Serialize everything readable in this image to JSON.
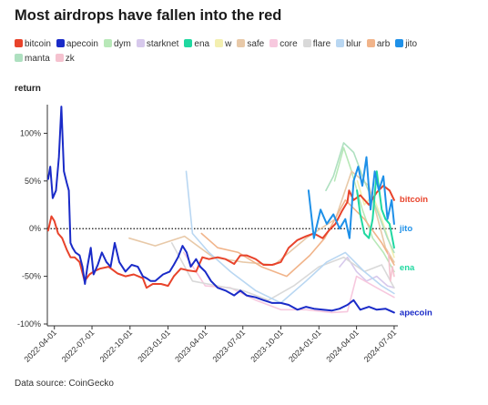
{
  "title": "Most airdrops have fallen into the red",
  "source": "Data source: CoinGecko",
  "chart_data": {
    "type": "line",
    "ylabel": "return",
    "xlabel": "",
    "y_unit": "%",
    "ylim": [
      -100,
      130
    ],
    "yticks": [
      100,
      50,
      0,
      -50,
      -100
    ],
    "ytick_labels": [
      "100%",
      "50%",
      "0%",
      "-50%",
      "-100%"
    ],
    "xlim": [
      "2022-03-15",
      "2024-07-10"
    ],
    "xticks": [
      "2022-04-01",
      "2022-07-01",
      "2022-10-01",
      "2023-01-01",
      "2023-04-01",
      "2023-07-01",
      "2023-10-01",
      "2024-01-01",
      "2024-04-01",
      "2024-07-01"
    ],
    "zero_line": "dotted",
    "grid": false,
    "legend_position": "top",
    "series": [
      {
        "name": "bitcoin",
        "color": "#e8432b",
        "end_label": "bitcoin",
        "x": [
          "2022-03-17",
          "2022-03-25",
          "2022-04-01",
          "2022-04-10",
          "2022-04-20",
          "2022-05-01",
          "2022-05-10",
          "2022-05-20",
          "2022-06-01",
          "2022-06-13",
          "2022-06-25",
          "2022-07-05",
          "2022-07-20",
          "2022-08-10",
          "2022-09-01",
          "2022-09-20",
          "2022-10-10",
          "2022-11-01",
          "2022-11-10",
          "2022-11-25",
          "2022-12-15",
          "2023-01-01",
          "2023-01-15",
          "2023-02-01",
          "2023-02-20",
          "2023-03-10",
          "2023-03-25",
          "2023-04-10",
          "2023-05-01",
          "2023-05-20",
          "2023-06-10",
          "2023-06-25",
          "2023-07-10",
          "2023-08-01",
          "2023-08-20",
          "2023-09-10",
          "2023-10-01",
          "2023-10-20",
          "2023-11-10",
          "2023-12-01",
          "2023-12-20",
          "2024-01-10",
          "2024-01-25",
          "2024-02-10",
          "2024-02-25",
          "2024-03-10",
          "2024-03-14",
          "2024-03-25",
          "2024-04-10",
          "2024-05-01",
          "2024-05-20",
          "2024-06-05",
          "2024-06-20",
          "2024-07-01"
        ],
        "y": [
          -2,
          13,
          8,
          -5,
          -10,
          -22,
          -30,
          -30,
          -35,
          -55,
          -48,
          -45,
          -42,
          -40,
          -47,
          -50,
          -48,
          -52,
          -62,
          -58,
          -58,
          -60,
          -50,
          -42,
          -44,
          -45,
          -30,
          -32,
          -30,
          -32,
          -37,
          -28,
          -28,
          -32,
          -38,
          -38,
          -35,
          -20,
          -12,
          -8,
          -5,
          -10,
          -2,
          5,
          18,
          28,
          40,
          30,
          35,
          25,
          38,
          45,
          40,
          30
        ]
      },
      {
        "name": "apecoin",
        "color": "#1a2bc8",
        "end_label": "apecoin",
        "x": [
          "2022-03-17",
          "2022-03-22",
          "2022-03-28",
          "2022-04-05",
          "2022-04-12",
          "2022-04-18",
          "2022-04-24",
          "2022-05-01",
          "2022-05-06",
          "2022-05-10",
          "2022-05-15",
          "2022-05-22",
          "2022-06-01",
          "2022-06-08",
          "2022-06-14",
          "2022-06-20",
          "2022-06-28",
          "2022-07-05",
          "2022-07-15",
          "2022-07-25",
          "2022-08-05",
          "2022-08-15",
          "2022-08-25",
          "2022-09-05",
          "2022-09-20",
          "2022-10-05",
          "2022-10-20",
          "2022-11-01",
          "2022-11-10",
          "2022-11-20",
          "2022-12-01",
          "2022-12-20",
          "2023-01-05",
          "2023-01-15",
          "2023-01-25",
          "2023-02-05",
          "2023-02-15",
          "2023-02-25",
          "2023-03-10",
          "2023-03-20",
          "2023-04-01",
          "2023-04-15",
          "2023-05-01",
          "2023-05-20",
          "2023-06-10",
          "2023-06-25",
          "2023-07-10",
          "2023-08-01",
          "2023-08-20",
          "2023-09-10",
          "2023-10-01",
          "2023-10-20",
          "2023-11-10",
          "2023-12-01",
          "2023-12-20",
          "2024-01-10",
          "2024-02-01",
          "2024-02-20",
          "2024-03-10",
          "2024-03-25",
          "2024-04-10",
          "2024-05-01",
          "2024-05-20",
          "2024-06-10",
          "2024-07-01"
        ],
        "y": [
          52,
          65,
          32,
          40,
          75,
          128,
          60,
          48,
          40,
          -15,
          -20,
          -25,
          -28,
          -40,
          -58,
          -40,
          -20,
          -48,
          -38,
          -25,
          -35,
          -40,
          -15,
          -35,
          -45,
          -38,
          -40,
          -50,
          -52,
          -55,
          -55,
          -48,
          -45,
          -38,
          -30,
          -18,
          -25,
          -40,
          -32,
          -40,
          -45,
          -55,
          -62,
          -65,
          -70,
          -65,
          -70,
          -72,
          -75,
          -78,
          -78,
          -80,
          -85,
          -82,
          -84,
          -85,
          -86,
          -84,
          -80,
          -75,
          -85,
          -82,
          -85,
          -84,
          -88
        ]
      },
      {
        "name": "dym",
        "color": "#b8e8b8",
        "x": [],
        "y": []
      },
      {
        "name": "starknet",
        "color": "#d7c9ec",
        "x": [],
        "y": []
      },
      {
        "name": "ena",
        "color": "#1fd8a0",
        "end_label": "ena",
        "x": [
          "2024-04-02",
          "2024-04-10",
          "2024-04-20",
          "2024-05-01",
          "2024-05-10",
          "2024-05-20",
          "2024-06-01",
          "2024-06-10",
          "2024-06-20",
          "2024-07-01"
        ],
        "y": [
          40,
          15,
          -5,
          -10,
          10,
          60,
          20,
          10,
          5,
          -20
        ]
      },
      {
        "name": "w",
        "color": "#f3efb0",
        "x": [],
        "y": []
      },
      {
        "name": "safe",
        "color": "#e8c9a8",
        "x": [],
        "y": []
      },
      {
        "name": "core",
        "color": "#f7c8de",
        "x": [],
        "y": []
      },
      {
        "name": "flare",
        "color": "#d9d9d9",
        "x": [],
        "y": []
      },
      {
        "name": "blur",
        "color": "#b9d7f2",
        "x": [],
        "y": []
      },
      {
        "name": "arb",
        "color": "#f1b48a",
        "x": [],
        "y": []
      },
      {
        "name": "jito",
        "color": "#1e90e8",
        "end_label": "jito",
        "x": [
          "2023-12-07",
          "2023-12-20",
          "2024-01-05",
          "2024-01-20",
          "2024-02-05",
          "2024-02-20",
          "2024-03-05",
          "2024-03-15",
          "2024-03-25",
          "2024-04-05",
          "2024-04-15",
          "2024-04-25",
          "2024-05-05",
          "2024-05-15",
          "2024-05-25",
          "2024-06-05",
          "2024-06-15",
          "2024-06-25",
          "2024-07-01"
        ],
        "y": [
          40,
          -10,
          20,
          5,
          15,
          0,
          10,
          -10,
          50,
          65,
          45,
          75,
          20,
          60,
          40,
          55,
          10,
          30,
          5
        ]
      },
      {
        "name": "manta",
        "color": "#aee0c0",
        "x": [],
        "y": []
      },
      {
        "name": "zk",
        "color": "#f5c2cf",
        "x": [],
        "y": []
      }
    ],
    "background_lines": [
      {
        "color": "#b8e8b8",
        "x": [
          "2024-02-08",
          "2024-03-01",
          "2024-03-20",
          "2024-04-15",
          "2024-05-10",
          "2024-06-05",
          "2024-07-01"
        ],
        "y": [
          50,
          85,
          60,
          20,
          -10,
          -25,
          -45
        ]
      },
      {
        "color": "#d7c9ec",
        "x": [
          "2024-02-20",
          "2024-03-10",
          "2024-04-01",
          "2024-04-25",
          "2024-05-20",
          "2024-06-15",
          "2024-07-01"
        ],
        "y": [
          -40,
          -30,
          -45,
          -55,
          -50,
          -60,
          -62
        ]
      },
      {
        "color": "#f3efb0",
        "x": [
          "2024-04-03",
          "2024-04-20",
          "2024-05-10",
          "2024-06-01",
          "2024-06-20",
          "2024-07-01"
        ],
        "y": [
          50,
          25,
          35,
          10,
          -15,
          -30
        ]
      },
      {
        "color": "#e8c9a8",
        "x": [
          "2022-09-29",
          "2022-12-01",
          "2023-02-10",
          "2023-04-20",
          "2023-07-01",
          "2023-09-15",
          "2023-12-01",
          "2024-02-10",
          "2024-03-20",
          "2024-05-01",
          "2024-06-10",
          "2024-07-01"
        ],
        "y": [
          -10,
          -18,
          -8,
          -30,
          -35,
          -38,
          -10,
          10,
          60,
          45,
          -20,
          -35
        ]
      },
      {
        "color": "#f7c8de",
        "x": [
          "2023-02-08",
          "2023-04-01",
          "2023-06-01",
          "2023-08-01",
          "2023-10-01",
          "2023-12-01",
          "2024-02-01",
          "2024-03-10",
          "2024-04-01",
          "2024-05-20",
          "2024-07-01"
        ],
        "y": [
          -25,
          -60,
          -62,
          -75,
          -85,
          -85,
          -88,
          -87,
          -50,
          -62,
          -72
        ]
      },
      {
        "color": "#d9d9d9",
        "x": [
          "2023-01-10",
          "2023-03-01",
          "2023-05-01",
          "2023-07-01",
          "2023-09-01",
          "2023-11-01",
          "2024-01-01",
          "2024-03-01",
          "2024-04-20",
          "2024-06-01",
          "2024-07-01"
        ],
        "y": [
          -15,
          -55,
          -60,
          -65,
          -75,
          -60,
          -40,
          -30,
          -45,
          -38,
          -62
        ]
      },
      {
        "color": "#b9d7f2",
        "x": [
          "2023-02-14",
          "2023-03-01",
          "2023-04-10",
          "2023-06-01",
          "2023-08-01",
          "2023-10-01",
          "2023-12-01",
          "2024-01-20",
          "2024-03-05",
          "2024-04-20",
          "2024-06-01",
          "2024-07-01"
        ],
        "y": [
          60,
          -5,
          -25,
          -45,
          -65,
          -78,
          -55,
          -35,
          -25,
          -45,
          -60,
          -68
        ]
      },
      {
        "color": "#f1b48a",
        "x": [
          "2023-03-23",
          "2023-05-01",
          "2023-06-20",
          "2023-08-15",
          "2023-10-15",
          "2023-12-10",
          "2024-01-15",
          "2024-03-05",
          "2024-04-20",
          "2024-06-01",
          "2024-07-01"
        ],
        "y": [
          -5,
          -20,
          -25,
          -40,
          -50,
          -28,
          -10,
          30,
          10,
          -15,
          -38
        ]
      },
      {
        "color": "#aee0c0",
        "x": [
          "2024-01-18",
          "2024-02-05",
          "2024-03-01",
          "2024-03-25",
          "2024-04-20",
          "2024-05-20",
          "2024-06-15",
          "2024-07-01"
        ],
        "y": [
          40,
          55,
          90,
          80,
          50,
          20,
          -10,
          -25
        ]
      },
      {
        "color": "#f5c2cf",
        "x": [
          "2024-06-17",
          "2024-06-22",
          "2024-06-27",
          "2024-07-01"
        ],
        "y": [
          -25,
          -55,
          -40,
          -50
        ]
      }
    ]
  }
}
